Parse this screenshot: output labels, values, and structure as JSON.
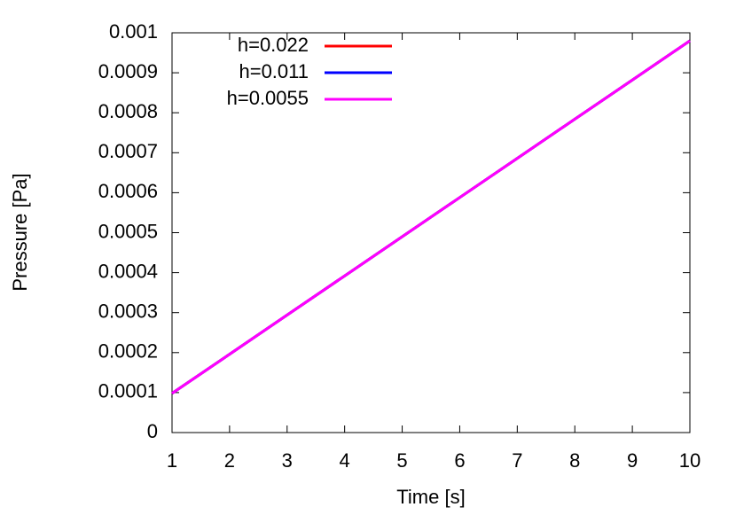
{
  "chart_data": {
    "type": "line",
    "x_label": "Time [s]",
    "y_label": "Pressure [Pa]",
    "x": [
      1,
      2,
      3,
      4,
      5,
      6,
      7,
      8,
      9,
      10
    ],
    "series": [
      {
        "name": "h=0.022",
        "color": "#ff0000",
        "values": [
          9.8e-05,
          0.000196,
          0.000294,
          0.000392,
          0.00049,
          0.000588,
          0.000686,
          0.000784,
          0.000882,
          0.00098
        ]
      },
      {
        "name": "h=0.011",
        "color": "#0000ff",
        "values": [
          9.8e-05,
          0.000196,
          0.000294,
          0.000392,
          0.00049,
          0.000588,
          0.000686,
          0.000784,
          0.000882,
          0.00098
        ]
      },
      {
        "name": "h=0.0055",
        "color": "#ff00ff",
        "values": [
          9.8e-05,
          0.000196,
          0.000294,
          0.000392,
          0.00049,
          0.000588,
          0.000686,
          0.000784,
          0.000882,
          0.00098
        ]
      }
    ],
    "xlim": [
      1,
      10
    ],
    "xticks": [
      1,
      2,
      3,
      4,
      5,
      6,
      7,
      8,
      9,
      10
    ],
    "ylim": [
      0,
      0.001
    ],
    "yticks": [
      0,
      0.0001,
      0.0002,
      0.0003,
      0.0004,
      0.0005,
      0.0006,
      0.0007,
      0.0008,
      0.0009,
      0.001
    ],
    "legend": "top-left"
  }
}
